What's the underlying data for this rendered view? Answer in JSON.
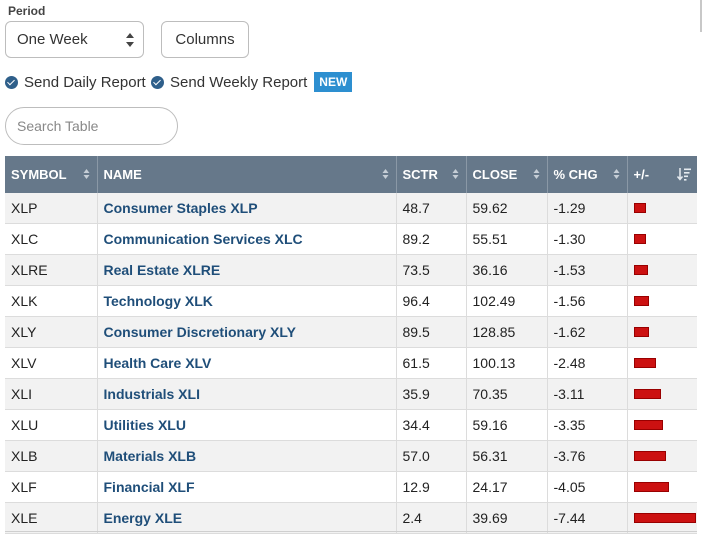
{
  "period": {
    "label": "Period",
    "selected": "One Week"
  },
  "columns_button": "Columns",
  "checkboxes": [
    {
      "label": "Send Daily Report",
      "checked": true
    },
    {
      "label": "Send Weekly Report",
      "checked": true,
      "badge": "NEW"
    }
  ],
  "search": {
    "placeholder": "Search Table",
    "value": ""
  },
  "table": {
    "headers": [
      "SYMBOL",
      "NAME",
      "SCTR",
      "CLOSE",
      "% CHG",
      "+/-"
    ],
    "rows": [
      {
        "symbol": "XLP",
        "name": "Consumer Staples XLP",
        "sctr": "48.7",
        "close": "59.62",
        "chg": "-1.29"
      },
      {
        "symbol": "XLC",
        "name": "Communication Services XLC",
        "sctr": "89.2",
        "close": "55.51",
        "chg": "-1.30"
      },
      {
        "symbol": "XLRE",
        "name": "Real Estate XLRE",
        "sctr": "73.5",
        "close": "36.16",
        "chg": "-1.53"
      },
      {
        "symbol": "XLK",
        "name": "Technology XLK",
        "sctr": "96.4",
        "close": "102.49",
        "chg": "-1.56"
      },
      {
        "symbol": "XLY",
        "name": "Consumer Discretionary XLY",
        "sctr": "89.5",
        "close": "128.85",
        "chg": "-1.62"
      },
      {
        "symbol": "XLV",
        "name": "Health Care XLV",
        "sctr": "61.5",
        "close": "100.13",
        "chg": "-2.48"
      },
      {
        "symbol": "XLI",
        "name": "Industrials XLI",
        "sctr": "35.9",
        "close": "70.35",
        "chg": "-3.11"
      },
      {
        "symbol": "XLU",
        "name": "Utilities XLU",
        "sctr": "34.4",
        "close": "59.16",
        "chg": "-3.35"
      },
      {
        "symbol": "XLB",
        "name": "Materials XLB",
        "sctr": "57.0",
        "close": "56.31",
        "chg": "-3.76"
      },
      {
        "symbol": "XLF",
        "name": "Financial XLF",
        "sctr": "12.9",
        "close": "24.17",
        "chg": "-4.05"
      },
      {
        "symbol": "XLE",
        "name": "Energy XLE",
        "sctr": "2.4",
        "close": "39.69",
        "chg": "-7.44"
      }
    ]
  },
  "colors": {
    "header_bg": "#66788a",
    "bar_negative": "#cc1111",
    "link": "#1f4e79",
    "badge_bg": "#2d8fd0",
    "check_icon": "#2f5f8a"
  },
  "icons": {
    "sort": "sort-arrows-icon",
    "sort_desc": "sort-descending-icon",
    "check": "check-circle-icon",
    "select": "up-down-chevron-icon"
  }
}
